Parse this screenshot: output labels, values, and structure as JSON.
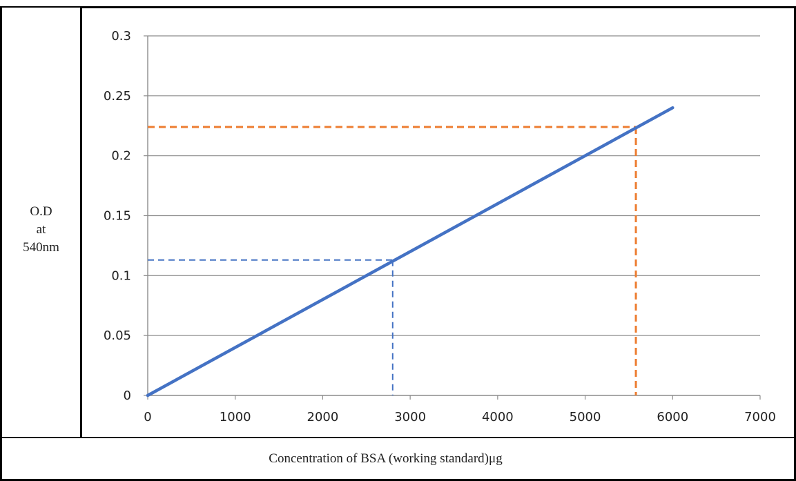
{
  "chart_data": {
    "type": "line",
    "xlabel": "Concentration of  BSA (working standard)μg",
    "ylabel_lines": [
      "O.D",
      "at",
      "540nm"
    ],
    "xlim": [
      0,
      7000
    ],
    "ylim": [
      0,
      0.3
    ],
    "x_ticks": [
      0,
      1000,
      2000,
      3000,
      4000,
      5000,
      6000,
      7000
    ],
    "x_tick_labels": [
      "0",
      "1000",
      "2000",
      "3000",
      "4000",
      "5000",
      "6000",
      "7000"
    ],
    "y_ticks": [
      0,
      0.05,
      0.1,
      0.15,
      0.2,
      0.25,
      0.3
    ],
    "y_tick_labels": [
      "0",
      "0.05",
      "0.1",
      "0.15",
      "0.2",
      "0.25",
      "0.3"
    ],
    "grid": "horizontal",
    "series": [
      {
        "color": "#4472c4",
        "x": [
          0,
          6000
        ],
        "y": [
          0,
          0.24
        ]
      }
    ],
    "reference_lines": [
      {
        "color": "#4472c4",
        "x": 2800,
        "y": 0.113
      },
      {
        "color": "#ed7d31",
        "x": 5580,
        "y": 0.224
      }
    ]
  }
}
